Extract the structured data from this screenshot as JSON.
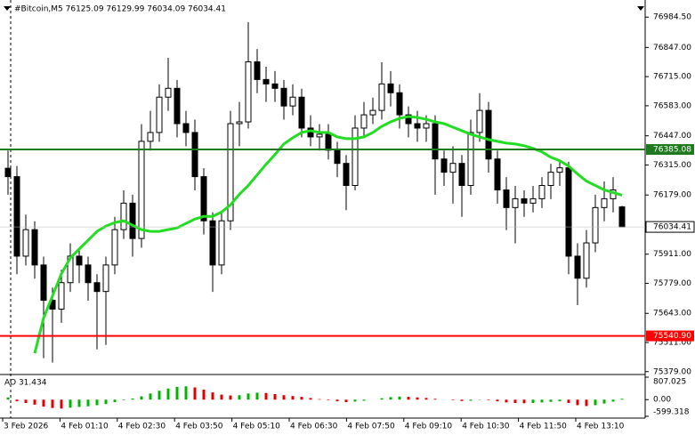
{
  "chart_data": {
    "type": "candlestick",
    "title": "#Bitcoin,M5  76125.09 76129.99 76034.09 76034.41",
    "up_color": "#ffffff",
    "down_color": "#000000",
    "wick_color": "#000000",
    "open": [
      76300,
      76262,
      75902,
      76022,
      75862,
      75702,
      75662,
      75782,
      75902,
      75862,
      75782,
      75742,
      75862,
      76022,
      76142,
      75982,
      76422,
      76462,
      76622,
      76662,
      76502,
      76462,
      76262,
      76062,
      75862,
      76062,
      76502,
      76510,
      76782,
      76702,
      76682,
      76662,
      76582,
      76622,
      76482,
      76442,
      76454,
      76382,
      76322,
      76222,
      76482,
      76542,
      76562,
      76682,
      76642,
      76542,
      76502,
      76482,
      76502,
      76342,
      76282,
      76322,
      76222,
      76462,
      76562,
      76342,
      76202,
      76122,
      76162,
      76142,
      76162,
      76222,
      76282,
      76302,
      75902,
      75802,
      75962,
      76122,
      76162,
      76125.09
    ],
    "high": [
      76380,
      76310,
      76090,
      76060,
      75900,
      75760,
      75840,
      75960,
      75930,
      75900,
      75820,
      75900,
      76080,
      76200,
      76180,
      76500,
      76560,
      76680,
      76800,
      76700,
      76560,
      76520,
      76300,
      76100,
      76100,
      76560,
      76600,
      76962,
      76840,
      76760,
      76740,
      76700,
      76680,
      76660,
      76540,
      76500,
      76500,
      76420,
      76360,
      76540,
      76600,
      76620,
      76780,
      76740,
      76680,
      76580,
      76560,
      76540,
      76540,
      76380,
      76400,
      76360,
      76520,
      76640,
      76600,
      76380,
      76260,
      76220,
      76200,
      76220,
      76260,
      76320,
      76340,
      76330,
      75960,
      76020,
      76180,
      76240,
      76260,
      76129.99
    ],
    "low": [
      76180,
      75820,
      75860,
      75800,
      75440,
      75420,
      75600,
      75740,
      75780,
      75700,
      75480,
      75500,
      75820,
      75980,
      75900,
      75940,
      76380,
      76420,
      76560,
      76440,
      76400,
      76200,
      76000,
      75740,
      75820,
      76020,
      76400,
      76480,
      76640,
      76600,
      76600,
      76520,
      76540,
      76440,
      76400,
      76380,
      76340,
      76260,
      76110,
      76200,
      76440,
      76500,
      76520,
      76580,
      76480,
      76440,
      76420,
      76420,
      76180,
      76220,
      76140,
      76080,
      76180,
      76420,
      76280,
      76140,
      76020,
      75960,
      76080,
      76100,
      76120,
      76160,
      76220,
      75820,
      75680,
      75760,
      75920,
      76060,
      76100,
      76034.09
    ],
    "close": [
      76262,
      75902,
      76022,
      75862,
      75702,
      75662,
      75782,
      75902,
      75862,
      75782,
      75742,
      75862,
      76022,
      76142,
      75982,
      76422,
      76462,
      76622,
      76662,
      76502,
      76462,
      76262,
      76062,
      75862,
      76062,
      76502,
      76510,
      76782,
      76702,
      76682,
      76662,
      76582,
      76622,
      76482,
      76442,
      76454,
      76382,
      76322,
      76222,
      76482,
      76542,
      76562,
      76682,
      76642,
      76542,
      76502,
      76482,
      76502,
      76342,
      76282,
      76322,
      76222,
      76462,
      76562,
      76342,
      76202,
      76122,
      76162,
      76142,
      76162,
      76222,
      76282,
      76302,
      75902,
      75802,
      75962,
      76122,
      76162,
      76202,
      76034.41
    ],
    "ma": {
      "color": "#22dd22",
      "values": [
        null,
        null,
        null,
        75462,
        75622,
        75722,
        75822,
        75894,
        75934,
        75974,
        76014,
        76038,
        76054,
        76062,
        76042,
        76022,
        76014,
        76014,
        76022,
        76030,
        76050,
        76070,
        76082,
        76082,
        76102,
        76134,
        76182,
        76222,
        76270,
        76318,
        76362,
        76410,
        76438,
        76462,
        76470,
        76462,
        76462,
        76442,
        76434,
        76434,
        76442,
        76462,
        76490,
        76510,
        76526,
        76534,
        76530,
        76522,
        76510,
        76502,
        76486,
        76470,
        76454,
        76442,
        76430,
        76422,
        76414,
        76410,
        76402,
        76390,
        76374,
        76350,
        76334,
        76310,
        76274,
        76242,
        76222,
        76202,
        76190,
        76178
      ]
    },
    "ylim": [
      75370,
      77062
    ],
    "yticks": [
      {
        "value": 76984.5,
        "label": "76984.50"
      },
      {
        "value": 76847,
        "label": "76847.00"
      },
      {
        "value": 76715,
        "label": "76715.00"
      },
      {
        "value": 76583,
        "label": "76583.00"
      },
      {
        "value": 76447,
        "label": "76447.00"
      },
      {
        "value": 76315,
        "label": "76315.00"
      },
      {
        "value": 76179,
        "label": "76179.00"
      },
      {
        "value": 75911,
        "label": "75911.00"
      },
      {
        "value": 75779,
        "label": "75779.00"
      },
      {
        "value": 75643,
        "label": "75643.00"
      },
      {
        "value": 75511,
        "label": "75511.00"
      },
      {
        "value": 75379,
        "label": "75379.00"
      }
    ],
    "levels": [
      {
        "value": 76385.08,
        "color": "#1f7a1f"
      },
      {
        "value": 75540.9,
        "label": "75540.90",
        "color": "#ff0000"
      }
    ],
    "xtick_labels": [
      "3 Feb 2026",
      "4 Feb 01:10",
      "4 Feb 02:30",
      "4 Feb 03:50",
      "4 Feb 05:10",
      "4 Feb 06:30",
      "4 Feb 07:50",
      "4 Feb 09:10",
      "4 Feb 10:30",
      "4 Feb 11:50",
      "4 Feb 13:10"
    ],
    "ao": {
      "label": "AO 31.434",
      "up_color": "#00b400",
      "down_color": "#e00000",
      "ylim": [
        -599.318,
        807.025
      ],
      "yticks": [
        {
          "value": 807.025,
          "label": "807.025"
        },
        {
          "value": 0,
          "label": "0.00"
        },
        {
          "value": -599.318,
          "label": "-599.318"
        }
      ],
      "values": [
        80,
        -60,
        -120,
        -180,
        -250,
        -300,
        -320,
        -290,
        -260,
        -240,
        -200,
        -160,
        -90,
        -20,
        40,
        120,
        220,
        320,
        400,
        460,
        480,
        440,
        360,
        260,
        180,
        150,
        160,
        220,
        250,
        240,
        200,
        160,
        130,
        100,
        60,
        20,
        -20,
        -60,
        -90,
        -70,
        -40,
        0,
        50,
        90,
        110,
        100,
        80,
        60,
        30,
        0,
        -20,
        -50,
        -40,
        -10,
        -20,
        -60,
        -100,
        -120,
        -130,
        -120,
        -100,
        -80,
        -60,
        -120,
        -200,
        -230,
        -200,
        -140,
        -70,
        31.434
      ]
    }
  }
}
